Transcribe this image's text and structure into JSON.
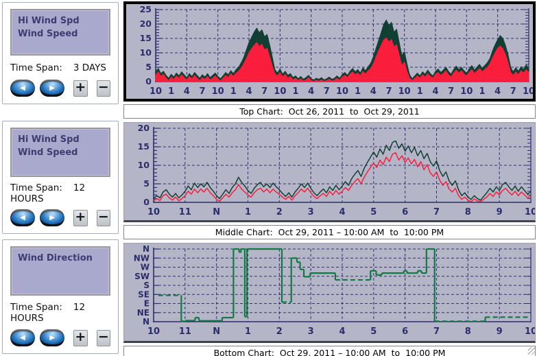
{
  "icons": {
    "prev": "◀",
    "next": "▶",
    "zoom_in": "+",
    "zoom_out": "−"
  },
  "colors": {
    "chart_bg": "#b5b5c8",
    "grid": "#31316e",
    "axis": "#2c2c6c",
    "hi_wind": "#12'3f'33",
    "legend_bg": "#a9a9ce"
  },
  "panels": [
    {
      "legend_lines": [
        "Hi Wind Spd",
        "Wind Speed"
      ],
      "time_span_label": "Time Span:",
      "time_span_value": "3 DAYS"
    },
    {
      "legend_lines": [
        "Hi Wind Spd",
        "Wind Speed"
      ],
      "time_span_label": "Time Span:",
      "time_span_value": "12 HOURS"
    },
    {
      "legend_lines": [
        "Wind Direction",
        ""
      ],
      "time_span_label": "Time Span:",
      "time_span_value": "12 HOURS"
    }
  ],
  "captions": [
    "Top Chart:  Oct 26, 2011  to  Oct 29, 2011",
    "Middle Chart:  Oct 29, 2011 – 10:00 AM  to  10:00 PM",
    "Bottom Chart:  Oct 29, 2011 – 10:00 AM  to  10:00 PM"
  ],
  "chart_data": [
    {
      "type": "area",
      "title": "Top Chart: Oct 26, 2011 to Oct 29, 2011",
      "xlim": [
        0,
        72
      ],
      "ylim": [
        0,
        25
      ],
      "xtick_labels": [
        "10",
        "1",
        "4",
        "7",
        "10",
        "1",
        "4",
        "7",
        "10",
        "1",
        "4",
        "7",
        "10",
        "1",
        "4",
        "7",
        "10",
        "1",
        "4",
        "7",
        "10",
        "1",
        "4",
        "7",
        "10"
      ],
      "xgrid_every": 2,
      "yticks": [
        0,
        5,
        10,
        15,
        20,
        25
      ],
      "ygrid": [
        5,
        10,
        15,
        20,
        25
      ],
      "y_minor_step": 1,
      "series": [
        {
          "name": "Hi Wind Spd",
          "color": "#123f33",
          "x_start": 0,
          "x_step": 0.5,
          "values": [
            3.2,
            4.6,
            2.8,
            3.6,
            2.2,
            1.2,
            2.6,
            1.6,
            3.0,
            2.0,
            3.4,
            2.4,
            1.4,
            2.8,
            1.8,
            3.2,
            2.2,
            1.2,
            2.4,
            1.6,
            2.8,
            1.4,
            2.2,
            3.0,
            1.8,
            1.0,
            2.0,
            3.2,
            2.4,
            3.8,
            2.8,
            4.2,
            5.0,
            6.6,
            8.4,
            11.0,
            13.6,
            15.4,
            17.2,
            18.6,
            17.0,
            18.0,
            15.6,
            16.4,
            12.8,
            8.6,
            4.2,
            3.0,
            4.4,
            2.6,
            3.6,
            2.2,
            2.8,
            1.4,
            2.0,
            1.0,
            1.8,
            0.8,
            1.4,
            2.2,
            1.0,
            0.6,
            1.2,
            0.8,
            1.4,
            0.6,
            1.0,
            1.6,
            0.8,
            1.2,
            2.0,
            1.2,
            2.4,
            3.2,
            2.2,
            3.6,
            4.6,
            3.4,
            4.2,
            3.0,
            4.8,
            3.8,
            5.2,
            6.4,
            8.6,
            11.4,
            14.2,
            17.0,
            19.8,
            21.4,
            19.6,
            20.6,
            17.2,
            18.2,
            13.6,
            9.0,
            10.4,
            6.2,
            2.4,
            1.0,
            2.0,
            3.0,
            2.0,
            3.4,
            2.6,
            4.0,
            2.8,
            2.0,
            3.6,
            4.4,
            3.2,
            4.0,
            5.0,
            3.6,
            2.6,
            4.2,
            5.4,
            4.2,
            5.0,
            3.8,
            3.0,
            4.4,
            5.6,
            4.0,
            5.0,
            6.0,
            4.6,
            5.6,
            6.6,
            8.0,
            10.6,
            12.8,
            14.6,
            16.0,
            15.0,
            12.6,
            9.4,
            5.0,
            3.4,
            4.8,
            3.6,
            5.2,
            4.2,
            5.8,
            4.6
          ]
        },
        {
          "name": "Wind Speed",
          "color": "#fb1e3c",
          "x_start": 0,
          "x_step": 0.5,
          "values": [
            2.2,
            3.4,
            1.8,
            2.6,
            1.2,
            0.4,
            1.6,
            0.8,
            2.0,
            1.2,
            2.4,
            1.4,
            0.6,
            1.8,
            1.0,
            2.2,
            1.2,
            0.4,
            1.4,
            0.8,
            1.8,
            0.6,
            1.2,
            2.0,
            1.0,
            0.2,
            1.2,
            2.2,
            1.4,
            2.8,
            1.8,
            3.0,
            3.6,
            4.8,
            6.2,
            8.0,
            10.0,
            11.4,
            12.6,
            13.6,
            12.2,
            13.0,
            11.0,
            11.6,
            8.6,
            5.4,
            2.8,
            2.0,
            3.2,
            1.6,
            2.6,
            1.2,
            1.8,
            0.6,
            1.2,
            0.4,
            1.0,
            0.2,
            0.6,
            1.4,
            0.4,
            0.1,
            0.5,
            0.2,
            0.6,
            0.1,
            0.4,
            0.8,
            0.2,
            0.5,
            1.2,
            0.5,
            1.6,
            2.2,
            1.4,
            2.6,
            3.4,
            2.4,
            3.0,
            2.0,
            3.6,
            2.6,
            3.8,
            4.6,
            6.2,
            8.4,
            10.6,
            12.6,
            14.4,
            15.2,
            13.8,
            14.6,
            12.0,
            12.8,
            9.2,
            5.6,
            6.8,
            3.6,
            1.2,
            0.4,
            1.2,
            2.0,
            1.2,
            2.4,
            1.6,
            2.8,
            1.8,
            1.2,
            2.6,
            3.2,
            2.2,
            2.8,
            3.8,
            2.4,
            1.6,
            3.0,
            4.0,
            3.0,
            3.8,
            2.6,
            2.0,
            3.2,
            4.2,
            2.8,
            3.6,
            4.6,
            3.4,
            4.2,
            5.0,
            6.2,
            8.2,
            10.0,
            11.6,
            12.4,
            11.4,
            9.4,
            6.6,
            3.2,
            2.2,
            3.4,
            2.4,
            3.8,
            3.0,
            4.2,
            3.2
          ]
        }
      ]
    },
    {
      "type": "line",
      "title": "Middle Chart: Oct 29, 2011 – 10:00 AM to 10:00 PM",
      "xlim": [
        10,
        22
      ],
      "ylim": [
        0,
        20
      ],
      "xtick_labels": [
        "10",
        "11",
        "N",
        "1",
        "2",
        "3",
        "4",
        "5",
        "6",
        "7",
        "8",
        "9",
        "10"
      ],
      "xgrid_every": 1,
      "yticks": [
        0,
        5,
        10,
        15,
        20
      ],
      "ygrid": [
        5,
        10,
        15,
        20
      ],
      "y_minor_step": 1,
      "series": [
        {
          "name": "Hi Wind Spd",
          "color": "#123f33",
          "x_start": 10,
          "x_step": 0.1,
          "values": [
            1.0,
            1.8,
            1.2,
            2.8,
            3.4,
            2.2,
            1.4,
            2.4,
            1.2,
            2.0,
            3.0,
            4.4,
            3.4,
            5.2,
            4.0,
            5.0,
            4.2,
            5.4,
            4.0,
            3.0,
            1.8,
            1.0,
            2.2,
            3.4,
            2.4,
            4.0,
            5.0,
            6.8,
            5.4,
            4.4,
            3.2,
            2.4,
            3.8,
            4.8,
            5.4,
            4.2,
            5.0,
            4.0,
            5.2,
            4.2,
            3.4,
            2.4,
            1.6,
            2.6,
            1.4,
            2.8,
            3.8,
            5.0,
            4.0,
            5.2,
            3.8,
            2.6,
            1.8,
            2.8,
            3.6,
            2.6,
            4.2,
            3.2,
            4.6,
            3.4,
            4.4,
            5.6,
            4.6,
            6.4,
            7.6,
            8.6,
            7.0,
            9.2,
            10.8,
            12.2,
            13.6,
            12.2,
            14.4,
            13.0,
            15.4,
            14.0,
            16.2,
            16.6,
            14.6,
            15.8,
            13.8,
            15.2,
            13.4,
            14.8,
            12.6,
            14.0,
            11.8,
            13.2,
            11.0,
            9.8,
            11.2,
            8.6,
            7.0,
            8.2,
            5.8,
            4.6,
            5.8,
            3.4,
            1.8,
            2.6,
            1.4,
            0.8,
            1.8,
            1.0,
            0.6,
            1.6,
            2.6,
            3.8,
            2.8,
            4.2,
            3.2,
            4.8,
            5.4,
            4.2,
            3.2,
            4.4,
            3.0,
            4.2,
            3.2,
            2.2,
            3.0
          ]
        },
        {
          "name": "Wind Speed",
          "color": "#fb1e3c",
          "x_start": 10,
          "x_step": 0.1,
          "values": [
            0.4,
            1.0,
            0.5,
            1.8,
            2.2,
            1.2,
            0.6,
            1.4,
            0.4,
            1.0,
            1.8,
            3.0,
            2.2,
            3.6,
            2.6,
            3.6,
            2.8,
            3.8,
            2.6,
            1.8,
            0.8,
            0.3,
            1.2,
            2.2,
            1.4,
            2.6,
            3.4,
            4.8,
            3.6,
            2.8,
            2.0,
            1.4,
            2.6,
            3.4,
            3.8,
            2.8,
            3.6,
            2.6,
            3.6,
            2.8,
            2.2,
            1.4,
            0.8,
            1.6,
            0.6,
            1.8,
            2.6,
            3.6,
            2.8,
            3.8,
            2.6,
            1.6,
            1.0,
            1.8,
            2.4,
            1.6,
            3.0,
            2.0,
            3.2,
            2.2,
            3.0,
            4.0,
            3.2,
            4.6,
            5.6,
            6.4,
            5.0,
            6.8,
            8.2,
            9.4,
            10.6,
            9.4,
            11.4,
            10.2,
            12.2,
            11.0,
            13.0,
            13.4,
            11.4,
            12.6,
            10.8,
            12.0,
            10.4,
            11.6,
            9.6,
            11.0,
            8.8,
            10.2,
            8.0,
            7.0,
            8.2,
            6.0,
            4.6,
            5.6,
            3.6,
            2.8,
            3.8,
            1.8,
            0.8,
            1.4,
            0.6,
            0.2,
            0.9,
            0.4,
            0.2,
            0.8,
            1.4,
            2.4,
            1.6,
            2.8,
            2.0,
            3.2,
            3.8,
            2.8,
            2.0,
            3.0,
            1.8,
            2.8,
            2.0,
            1.2,
            1.8
          ]
        }
      ]
    },
    {
      "type": "step",
      "title": "Bottom Chart: Oct 29, 2011 – 10:00 AM to 10:00 PM",
      "series_name": "Wind Direction",
      "color": "#117a42",
      "xlim": [
        10,
        22
      ],
      "ylim": [
        0,
        8
      ],
      "xtick_labels": [
        "10",
        "11",
        "N",
        "1",
        "2",
        "3",
        "4",
        "5",
        "6",
        "7",
        "8",
        "9",
        "10"
      ],
      "xgrid_every": 1,
      "yticks": [
        0,
        1,
        2,
        3,
        4,
        5,
        6,
        7,
        8
      ],
      "ytick_labels": [
        "N",
        "NE",
        "E",
        "SE",
        "S",
        "SW",
        "W",
        "NW",
        "N"
      ],
      "ygrid": [
        1,
        2,
        3,
        4,
        5,
        6,
        7,
        8
      ],
      "segments": [
        {
          "x1": 10.15,
          "x2": 10.88,
          "y": 2.9,
          "dashed": true,
          "join": false
        },
        {
          "x1": 10.88,
          "x2": 11.02,
          "y": 0.05,
          "dashed": false,
          "join": true
        },
        {
          "x1": 11.02,
          "x2": 11.32,
          "y": 0.12,
          "dashed": false,
          "join": true
        },
        {
          "x1": 11.32,
          "x2": 11.44,
          "y": 0.45,
          "dashed": false,
          "join": true
        },
        {
          "x1": 11.44,
          "x2": 12.18,
          "y": 0.1,
          "dashed": false,
          "join": true
        },
        {
          "x1": 12.18,
          "x2": 12.54,
          "y": 0.45,
          "dashed": false,
          "join": true
        },
        {
          "x1": 12.54,
          "x2": 12.72,
          "y": 8,
          "dashed": false,
          "join": true
        },
        {
          "x1": 12.72,
          "x2": 12.78,
          "y": 7.65,
          "dashed": false,
          "join": true
        },
        {
          "x1": 12.78,
          "x2": 12.9,
          "y": 8,
          "dashed": false,
          "join": true
        },
        {
          "x1": 12.9,
          "x2": 12.97,
          "y": 0.55,
          "dashed": false,
          "join": true
        },
        {
          "x1": 12.97,
          "x2": 14.08,
          "y": 8,
          "dashed": false,
          "join": true
        },
        {
          "x1": 14.08,
          "x2": 14.38,
          "y": 2.15,
          "dashed": true,
          "join": true
        },
        {
          "x1": 14.38,
          "x2": 14.56,
          "y": 7.0,
          "dashed": false,
          "join": true
        },
        {
          "x1": 14.56,
          "x2": 14.66,
          "y": 6.55,
          "dashed": false,
          "join": true
        },
        {
          "x1": 14.66,
          "x2": 14.78,
          "y": 5.75,
          "dashed": false,
          "join": true
        },
        {
          "x1": 14.78,
          "x2": 14.98,
          "y": 4.95,
          "dashed": false,
          "join": true
        },
        {
          "x1": 14.98,
          "x2": 15.78,
          "y": 5.35,
          "dashed": false,
          "join": true
        },
        {
          "x1": 15.78,
          "x2": 16.9,
          "y": 4.6,
          "dashed": true,
          "join": true
        },
        {
          "x1": 16.9,
          "x2": 17.08,
          "y": 5.6,
          "dashed": false,
          "join": true
        },
        {
          "x1": 17.08,
          "x2": 17.26,
          "y": 5.15,
          "dashed": false,
          "join": true
        },
        {
          "x1": 17.26,
          "x2": 17.96,
          "y": 5.35,
          "dashed": false,
          "join": true
        },
        {
          "x1": 17.96,
          "x2": 18.06,
          "y": 5.6,
          "dashed": false,
          "join": true
        },
        {
          "x1": 18.06,
          "x2": 18.4,
          "y": 5.35,
          "dashed": false,
          "join": true
        },
        {
          "x1": 18.4,
          "x2": 18.52,
          "y": 5.6,
          "dashed": false,
          "join": true
        },
        {
          "x1": 18.52,
          "x2": 18.68,
          "y": 5.35,
          "dashed": false,
          "join": true
        },
        {
          "x1": 18.68,
          "x2": 18.94,
          "y": 8,
          "dashed": false,
          "join": true
        },
        {
          "x1": 18.94,
          "x2": 20.55,
          "y": 0.05,
          "dashed": true,
          "join": true
        },
        {
          "x1": 20.55,
          "x2": 22,
          "y": 0.5,
          "dashed": true,
          "join": true
        }
      ]
    }
  ]
}
